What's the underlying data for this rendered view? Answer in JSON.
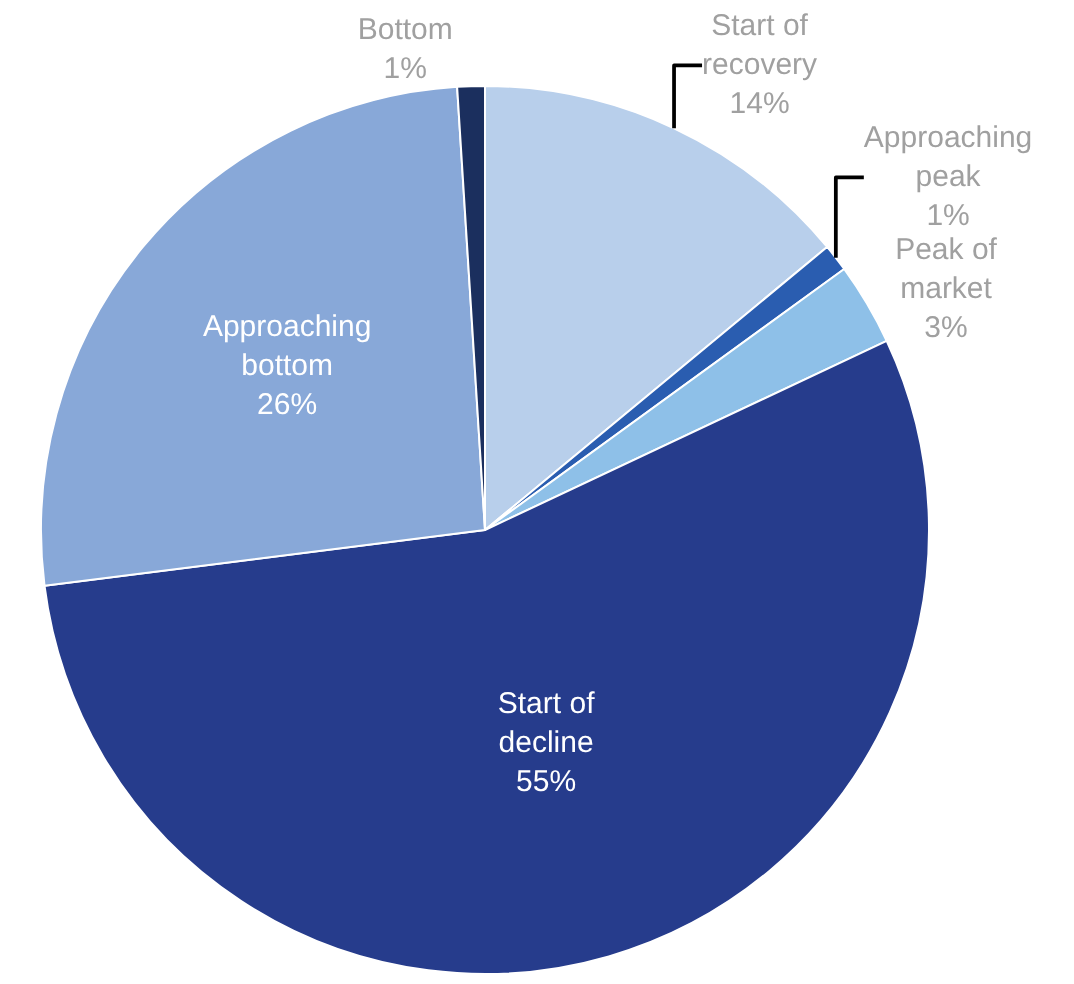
{
  "chart_data": {
    "type": "pie",
    "categories": [
      "Start of recovery",
      "Approaching peak",
      "Peak of market",
      "Start of decline",
      "Approaching bottom",
      "Bottom"
    ],
    "values": [
      14,
      1,
      3,
      55,
      26,
      1
    ],
    "colors": [
      "#b8cfeb",
      "#2a5db0",
      "#8ec0e8",
      "#263c8c",
      "#88a8d8",
      "#1b2f5e"
    ],
    "value_labels": [
      "14%",
      "1%",
      "3%",
      "55%",
      "26%",
      "1%"
    ],
    "legend": false
  }
}
